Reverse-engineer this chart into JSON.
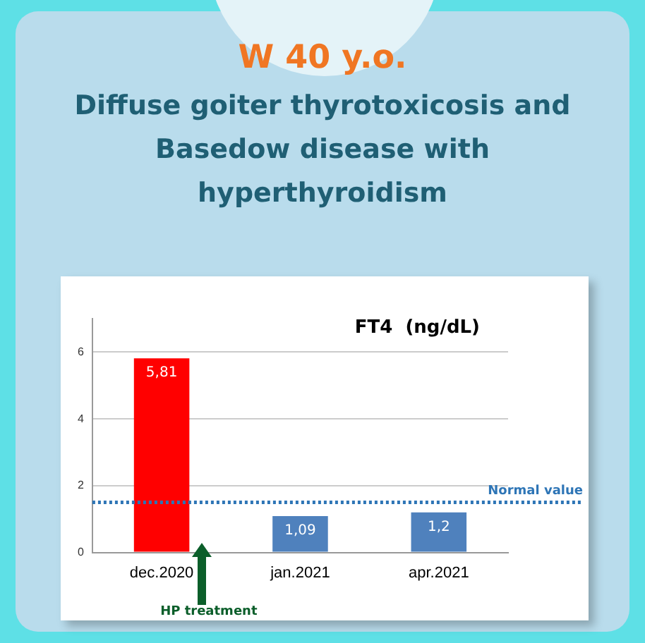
{
  "chart_data": {
    "type": "bar",
    "title": "W 40 y.o.",
    "subtitle": "Diffuse goiter thyrotoxicosis and Basedow disease with hyperthyroidism",
    "ylabel": "FT4  (ng/dL)",
    "categories": [
      "dec.2020",
      "jan.2021",
      "apr.2021"
    ],
    "values": [
      5.81,
      1.09,
      1.2
    ],
    "colors": [
      "#ff0000",
      "#4f81bd",
      "#4f81bd"
    ],
    "value_labels": [
      "5,81",
      "1,09",
      "1,2"
    ],
    "ylim": [
      0,
      7
    ],
    "yticks": [
      0,
      2,
      4,
      6
    ],
    "grid": "y",
    "ref_lines": [
      {
        "axis": "y",
        "value": 1.5,
        "label": "Normal value",
        "color": "#2e75b6",
        "line_style": "dotted"
      }
    ],
    "annotations": [
      "HP treatment"
    ]
  }
}
